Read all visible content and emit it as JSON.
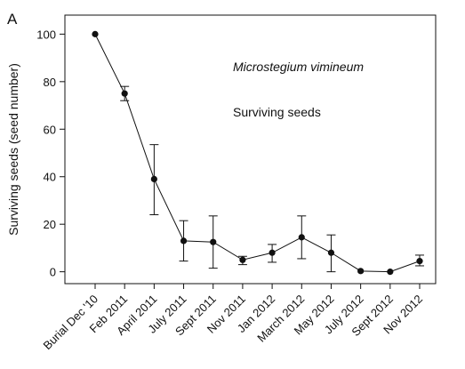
{
  "panel_label": "A",
  "chart_data": {
    "type": "line",
    "title": "",
    "xlabel": "",
    "ylabel": "Surviving seeds (seed number)",
    "ylim": [
      -5,
      108
    ],
    "yticks": [
      0,
      20,
      40,
      60,
      80,
      100
    ],
    "grid": false,
    "categories": [
      "Burial Dec '10",
      "Feb 2011",
      "April 2011",
      "July 2011",
      "Sept 2011",
      "Nov 2011",
      "Jan 2012",
      "March 2012",
      "May 2012",
      "July 2012",
      "Sept 2012",
      "Nov 2012"
    ],
    "series": [
      {
        "values": [
          100,
          75,
          39,
          13,
          12.5,
          5,
          8,
          14.5,
          8,
          0.3,
          0,
          4.5
        ],
        "error_low": [
          null,
          72,
          24,
          4.5,
          1.5,
          3,
          4,
          5.5,
          0,
          null,
          null,
          2.5
        ],
        "error_high": [
          null,
          78,
          53.5,
          21.5,
          23.5,
          6.5,
          11.5,
          23.5,
          15.5,
          null,
          null,
          7
        ]
      }
    ],
    "annotations": [
      "Microstegium vimineum",
      "Surviving seeds"
    ]
  },
  "colors": {
    "line": "#111111",
    "marker": "#111111",
    "axis": "#111111"
  }
}
